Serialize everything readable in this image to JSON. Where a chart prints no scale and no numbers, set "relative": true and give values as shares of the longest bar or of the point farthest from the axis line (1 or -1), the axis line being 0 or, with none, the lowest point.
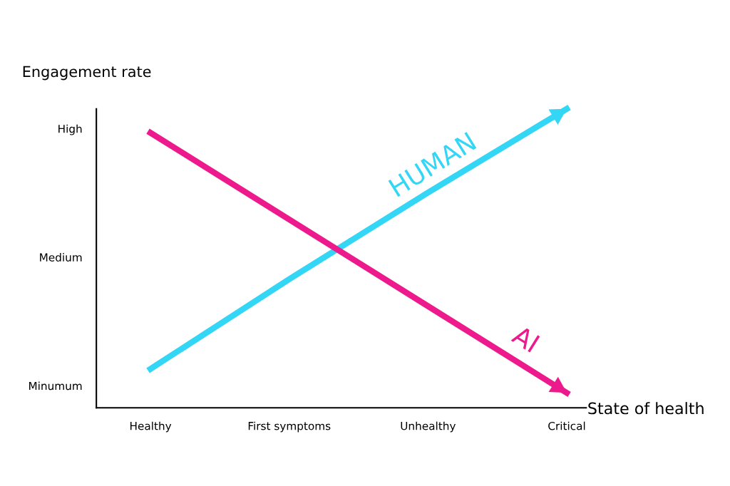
{
  "chart_data": {
    "type": "line",
    "xlabel": "State of health",
    "ylabel": "Engagement rate",
    "relative": true,
    "categories": [
      "Healthy",
      "First symptoms",
      "Unhealthy",
      "Critical"
    ],
    "annotations": [
      "High",
      "Medium",
      "Minumum"
    ],
    "grid": false,
    "legend": false,
    "marker": "none",
    "line_style": "solid",
    "series": [
      {
        "name": "HUMAN",
        "color": "#33d6f5",
        "values": [
          0.13,
          0.43,
          0.72,
          1.0
        ]
      },
      {
        "name": "AI",
        "color": "#ec1a8c",
        "values": [
          0.92,
          0.63,
          0.34,
          0.05
        ]
      }
    ]
  }
}
